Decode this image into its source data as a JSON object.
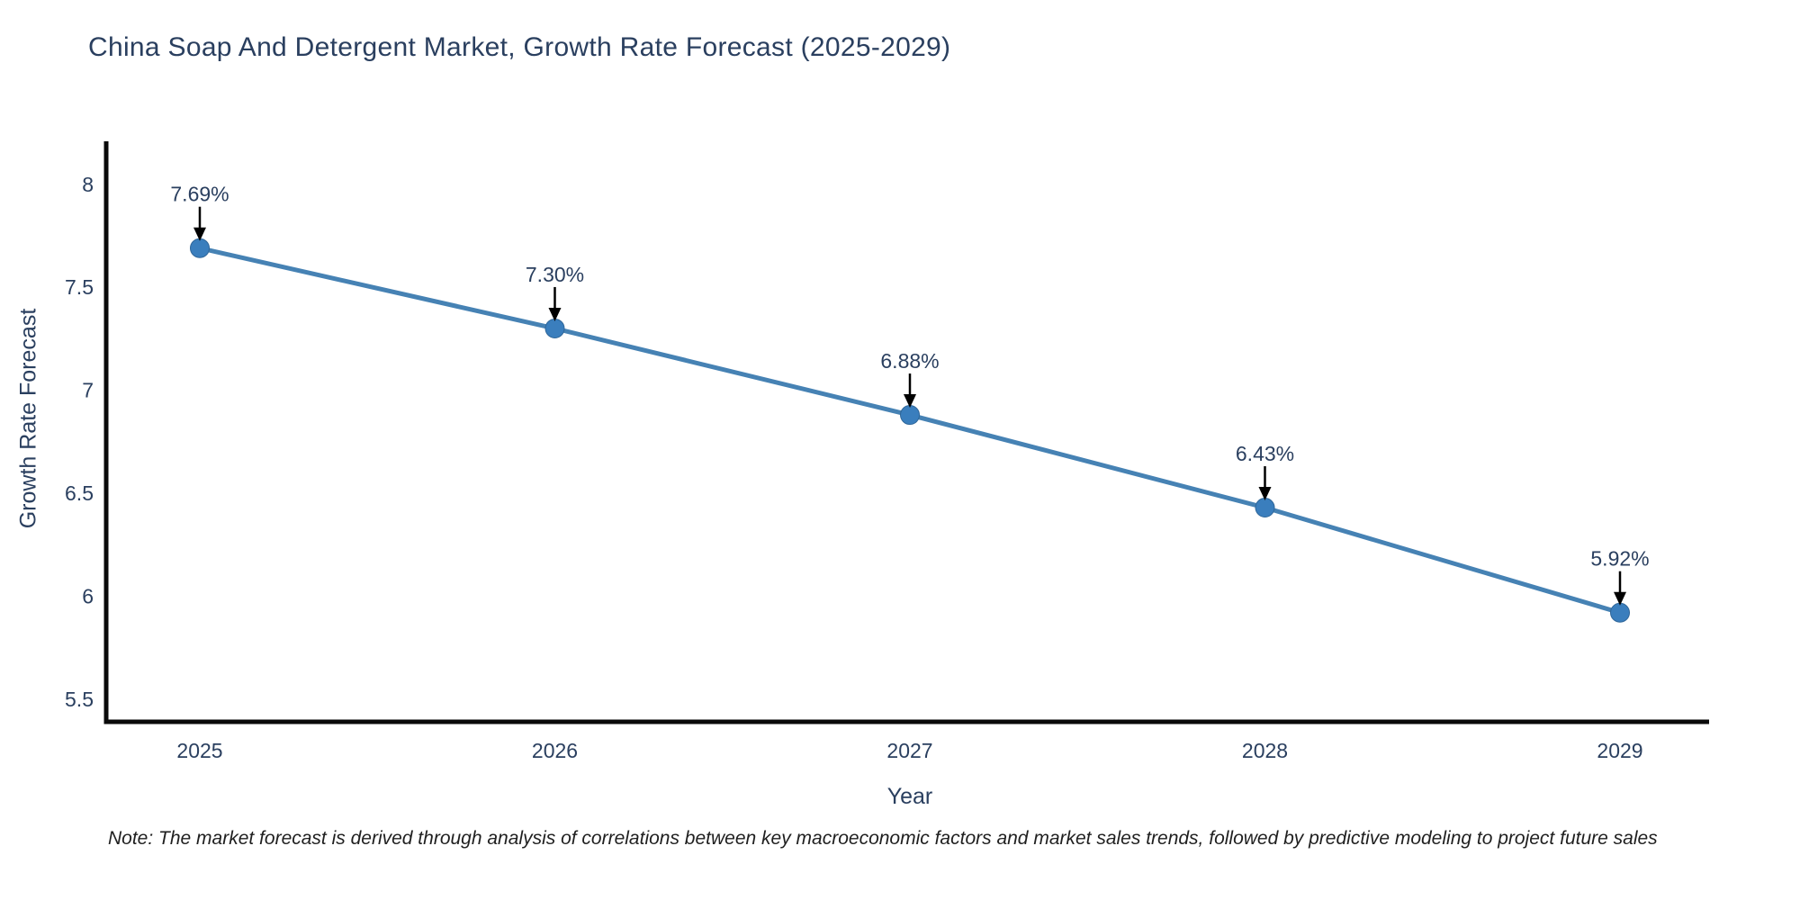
{
  "title": "China Soap And Detergent Market, Growth Rate Forecast (2025-2029)",
  "note": "Note: The market forecast is derived through analysis of correlations between key macroeconomic factors and market sales trends, followed by predictive modeling to project future sales",
  "colors": {
    "background": "#ffffff",
    "title_text": "#2a3f5f",
    "axis_line": "#0a0a0a",
    "tick_label": "#2a3f5f",
    "line": "#4682b4",
    "marker": "#3a7ebd",
    "marker_edge": "#2f6699",
    "annotation_text": "#2a3f5f",
    "arrow": "#000000",
    "note_text": "#1f1f1f"
  },
  "chart_data": {
    "type": "line",
    "title": "China Soap And Detergent Market, Growth Rate Forecast (2025-2029)",
    "xlabel": "Year",
    "ylabel": "Growth Rate Forecast",
    "x": [
      2025,
      2026,
      2027,
      2028,
      2029
    ],
    "series": [
      {
        "name": "Growth Rate Forecast",
        "values": [
          7.69,
          7.3,
          6.88,
          6.43,
          5.92
        ]
      }
    ],
    "point_labels": [
      "7.69%",
      "7.30%",
      "6.88%",
      "6.43%",
      "5.92%"
    ],
    "xticks": [
      "2025",
      "2026",
      "2027",
      "2028",
      "2029"
    ],
    "yticks": [
      {
        "value": 5.5,
        "label": "5.5"
      },
      {
        "value": 6.0,
        "label": "6"
      },
      {
        "value": 6.5,
        "label": "6.5"
      },
      {
        "value": 7.0,
        "label": "7"
      },
      {
        "value": 7.5,
        "label": "7.5"
      },
      {
        "value": 8.0,
        "label": "8"
      }
    ],
    "xlim": [
      2024.74,
      2029.25
    ],
    "ylim": [
      5.39,
      8.2
    ],
    "grid": false,
    "legend": false,
    "marker": "circle",
    "annotation_style": "black-down-arrow-above-point"
  }
}
